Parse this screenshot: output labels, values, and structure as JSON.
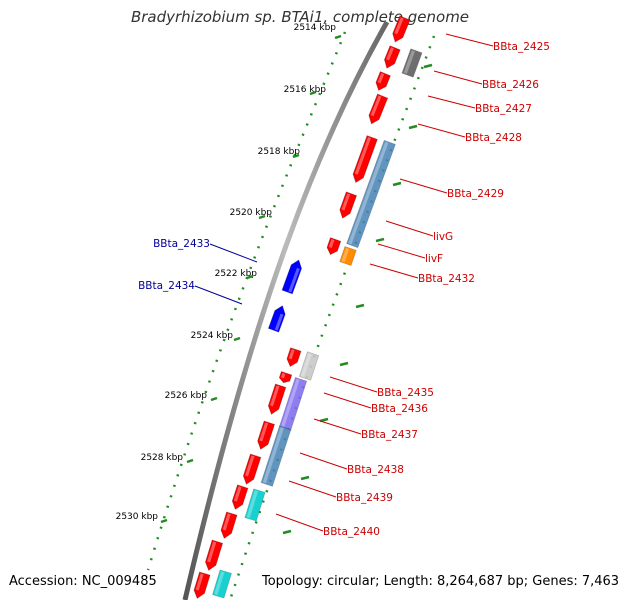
{
  "title": "Bradyrhizobium sp. BTAi1, complete genome",
  "accession_label": "Accession: NC_009485",
  "topology_label": "Topology: circular; Length: 8,264,687 bp; Genes: 7,463",
  "ruler_ticks": [
    "2514 kbp",
    "2516 kbp",
    "2518 kbp",
    "2520 kbp",
    "2522 kbp",
    "2524 kbp",
    "2526 kbp",
    "2528 kbp",
    "2530 kbp"
  ],
  "colors": {
    "forward_gene": "#ff0000",
    "reverse_gene": "#0000ff",
    "forward_label": "#cc0000",
    "reverse_label": "#000099",
    "backbone": "#888888",
    "ruler": "#228b22",
    "gray_feature": "#555555",
    "blue_feature": "#4682b4",
    "orange_feature": "#ff8c00",
    "cyan_feature": "#00cccc",
    "purple_feature": "#7b68ee",
    "light_feature": "#c8c8c8"
  },
  "gene_labels": [
    {
      "text": "BBta_2425",
      "strand": "forward"
    },
    {
      "text": "BBta_2426",
      "strand": "forward"
    },
    {
      "text": "BBta_2427",
      "strand": "forward"
    },
    {
      "text": "BBta_2428",
      "strand": "forward"
    },
    {
      "text": "BBta_2429",
      "strand": "forward"
    },
    {
      "text": "livG",
      "strand": "forward"
    },
    {
      "text": "livF",
      "strand": "forward"
    },
    {
      "text": "BBta_2432",
      "strand": "forward"
    },
    {
      "text": "BBta_2433",
      "strand": "reverse"
    },
    {
      "text": "BBta_2434",
      "strand": "reverse"
    },
    {
      "text": "BBta_2435",
      "strand": "forward"
    },
    {
      "text": "BBta_2436",
      "strand": "forward"
    },
    {
      "text": "BBta_2437",
      "strand": "forward"
    },
    {
      "text": "BBta_2438",
      "strand": "forward"
    },
    {
      "text": "BBta_2439",
      "strand": "forward"
    },
    {
      "text": "BBta_2440",
      "strand": "forward"
    }
  ]
}
